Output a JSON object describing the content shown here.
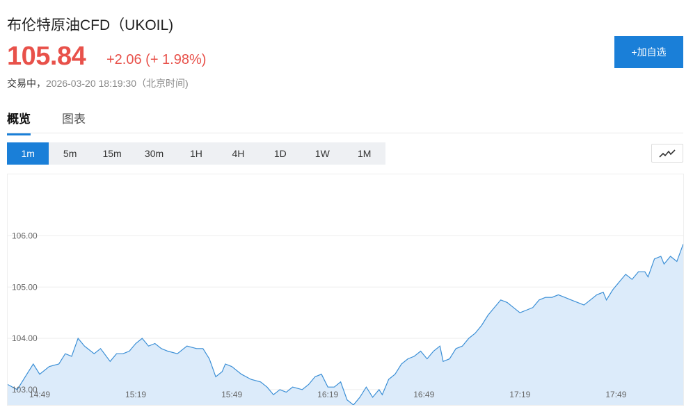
{
  "header": {
    "title": "布伦特原油CFD（UKOIL)",
    "price": "105.84",
    "change": "+2.06 (+ 1.98%)",
    "status_label": "交易中，",
    "timestamp": "2026-03-20 18:19:30（北京时间)",
    "add_button": "+加自选"
  },
  "tabs": [
    {
      "label": "概览",
      "active": true
    },
    {
      "label": "图表",
      "active": false
    }
  ],
  "periods": [
    "1m",
    "5m",
    "15m",
    "30m",
    "1H",
    "4H",
    "1D",
    "1W",
    "1M"
  ],
  "active_period": "1m",
  "chart_type_icon": "line-chart-icon",
  "colors": {
    "accent": "#1a7fd8",
    "price_up": "#e8514a",
    "line": "#3b8fd6",
    "area": "#dcebfa"
  },
  "chart_data": {
    "type": "area",
    "ylim": [
      102.7,
      107.2
    ],
    "yticks": [
      103.0,
      104.0,
      105.0,
      106.0
    ],
    "ytick_labels": [
      "103.00",
      "104.00",
      "105.00",
      "106.00"
    ],
    "xticks": [
      "14:49",
      "15:19",
      "15:49",
      "16:19",
      "16:49",
      "17:19",
      "17:49"
    ],
    "xtick_positions": [
      10,
      40,
      70,
      100,
      130,
      160,
      190
    ],
    "x_count": 212,
    "series": [
      {
        "points": [
          [
            0,
            103.1
          ],
          [
            3,
            103.0
          ],
          [
            6,
            103.3
          ],
          [
            8,
            103.5
          ],
          [
            10,
            103.3
          ],
          [
            13,
            103.45
          ],
          [
            16,
            103.5
          ],
          [
            18,
            103.7
          ],
          [
            20,
            103.65
          ],
          [
            22,
            104.0
          ],
          [
            24,
            103.85
          ],
          [
            27,
            103.7
          ],
          [
            29,
            103.8
          ],
          [
            32,
            103.55
          ],
          [
            34,
            103.7
          ],
          [
            36,
            103.7
          ],
          [
            38,
            103.75
          ],
          [
            40,
            103.9
          ],
          [
            42,
            104.0
          ],
          [
            44,
            103.85
          ],
          [
            46,
            103.9
          ],
          [
            48,
            103.8
          ],
          [
            50,
            103.75
          ],
          [
            53,
            103.7
          ],
          [
            56,
            103.85
          ],
          [
            59,
            103.8
          ],
          [
            61,
            103.8
          ],
          [
            63,
            103.6
          ],
          [
            65,
            103.25
          ],
          [
            67,
            103.35
          ],
          [
            68,
            103.5
          ],
          [
            70,
            103.45
          ],
          [
            73,
            103.3
          ],
          [
            76,
            103.2
          ],
          [
            79,
            103.15
          ],
          [
            81,
            103.05
          ],
          [
            83,
            102.9
          ],
          [
            85,
            103.0
          ],
          [
            87,
            102.95
          ],
          [
            89,
            103.05
          ],
          [
            92,
            103.0
          ],
          [
            94,
            103.1
          ],
          [
            96,
            103.25
          ],
          [
            98,
            103.3
          ],
          [
            100,
            103.05
          ],
          [
            102,
            103.05
          ],
          [
            104,
            103.15
          ],
          [
            106,
            102.8
          ],
          [
            108,
            102.7
          ],
          [
            110,
            102.85
          ],
          [
            112,
            103.05
          ],
          [
            114,
            102.85
          ],
          [
            116,
            103.0
          ],
          [
            117,
            102.9
          ],
          [
            119,
            103.2
          ],
          [
            121,
            103.3
          ],
          [
            123,
            103.5
          ],
          [
            125,
            103.6
          ],
          [
            127,
            103.65
          ],
          [
            129,
            103.75
          ],
          [
            131,
            103.6
          ],
          [
            133,
            103.75
          ],
          [
            135,
            103.85
          ],
          [
            136,
            103.55
          ],
          [
            138,
            103.6
          ],
          [
            140,
            103.8
          ],
          [
            142,
            103.85
          ],
          [
            144,
            104.0
          ],
          [
            146,
            104.1
          ],
          [
            148,
            104.25
          ],
          [
            150,
            104.45
          ],
          [
            152,
            104.6
          ],
          [
            154,
            104.75
          ],
          [
            156,
            104.7
          ],
          [
            158,
            104.6
          ],
          [
            160,
            104.5
          ],
          [
            162,
            104.55
          ],
          [
            164,
            104.6
          ],
          [
            166,
            104.75
          ],
          [
            168,
            104.8
          ],
          [
            170,
            104.8
          ],
          [
            172,
            104.85
          ],
          [
            174,
            104.8
          ],
          [
            176,
            104.75
          ],
          [
            178,
            104.7
          ],
          [
            180,
            104.65
          ],
          [
            182,
            104.75
          ],
          [
            184,
            104.85
          ],
          [
            186,
            104.9
          ],
          [
            187,
            104.75
          ],
          [
            189,
            104.95
          ],
          [
            191,
            105.1
          ],
          [
            193,
            105.25
          ],
          [
            195,
            105.15
          ],
          [
            197,
            105.3
          ],
          [
            199,
            105.3
          ],
          [
            200,
            105.2
          ],
          [
            202,
            105.55
          ],
          [
            204,
            105.6
          ],
          [
            205,
            105.45
          ],
          [
            207,
            105.6
          ],
          [
            209,
            105.5
          ],
          [
            211,
            105.84
          ]
        ]
      }
    ]
  }
}
